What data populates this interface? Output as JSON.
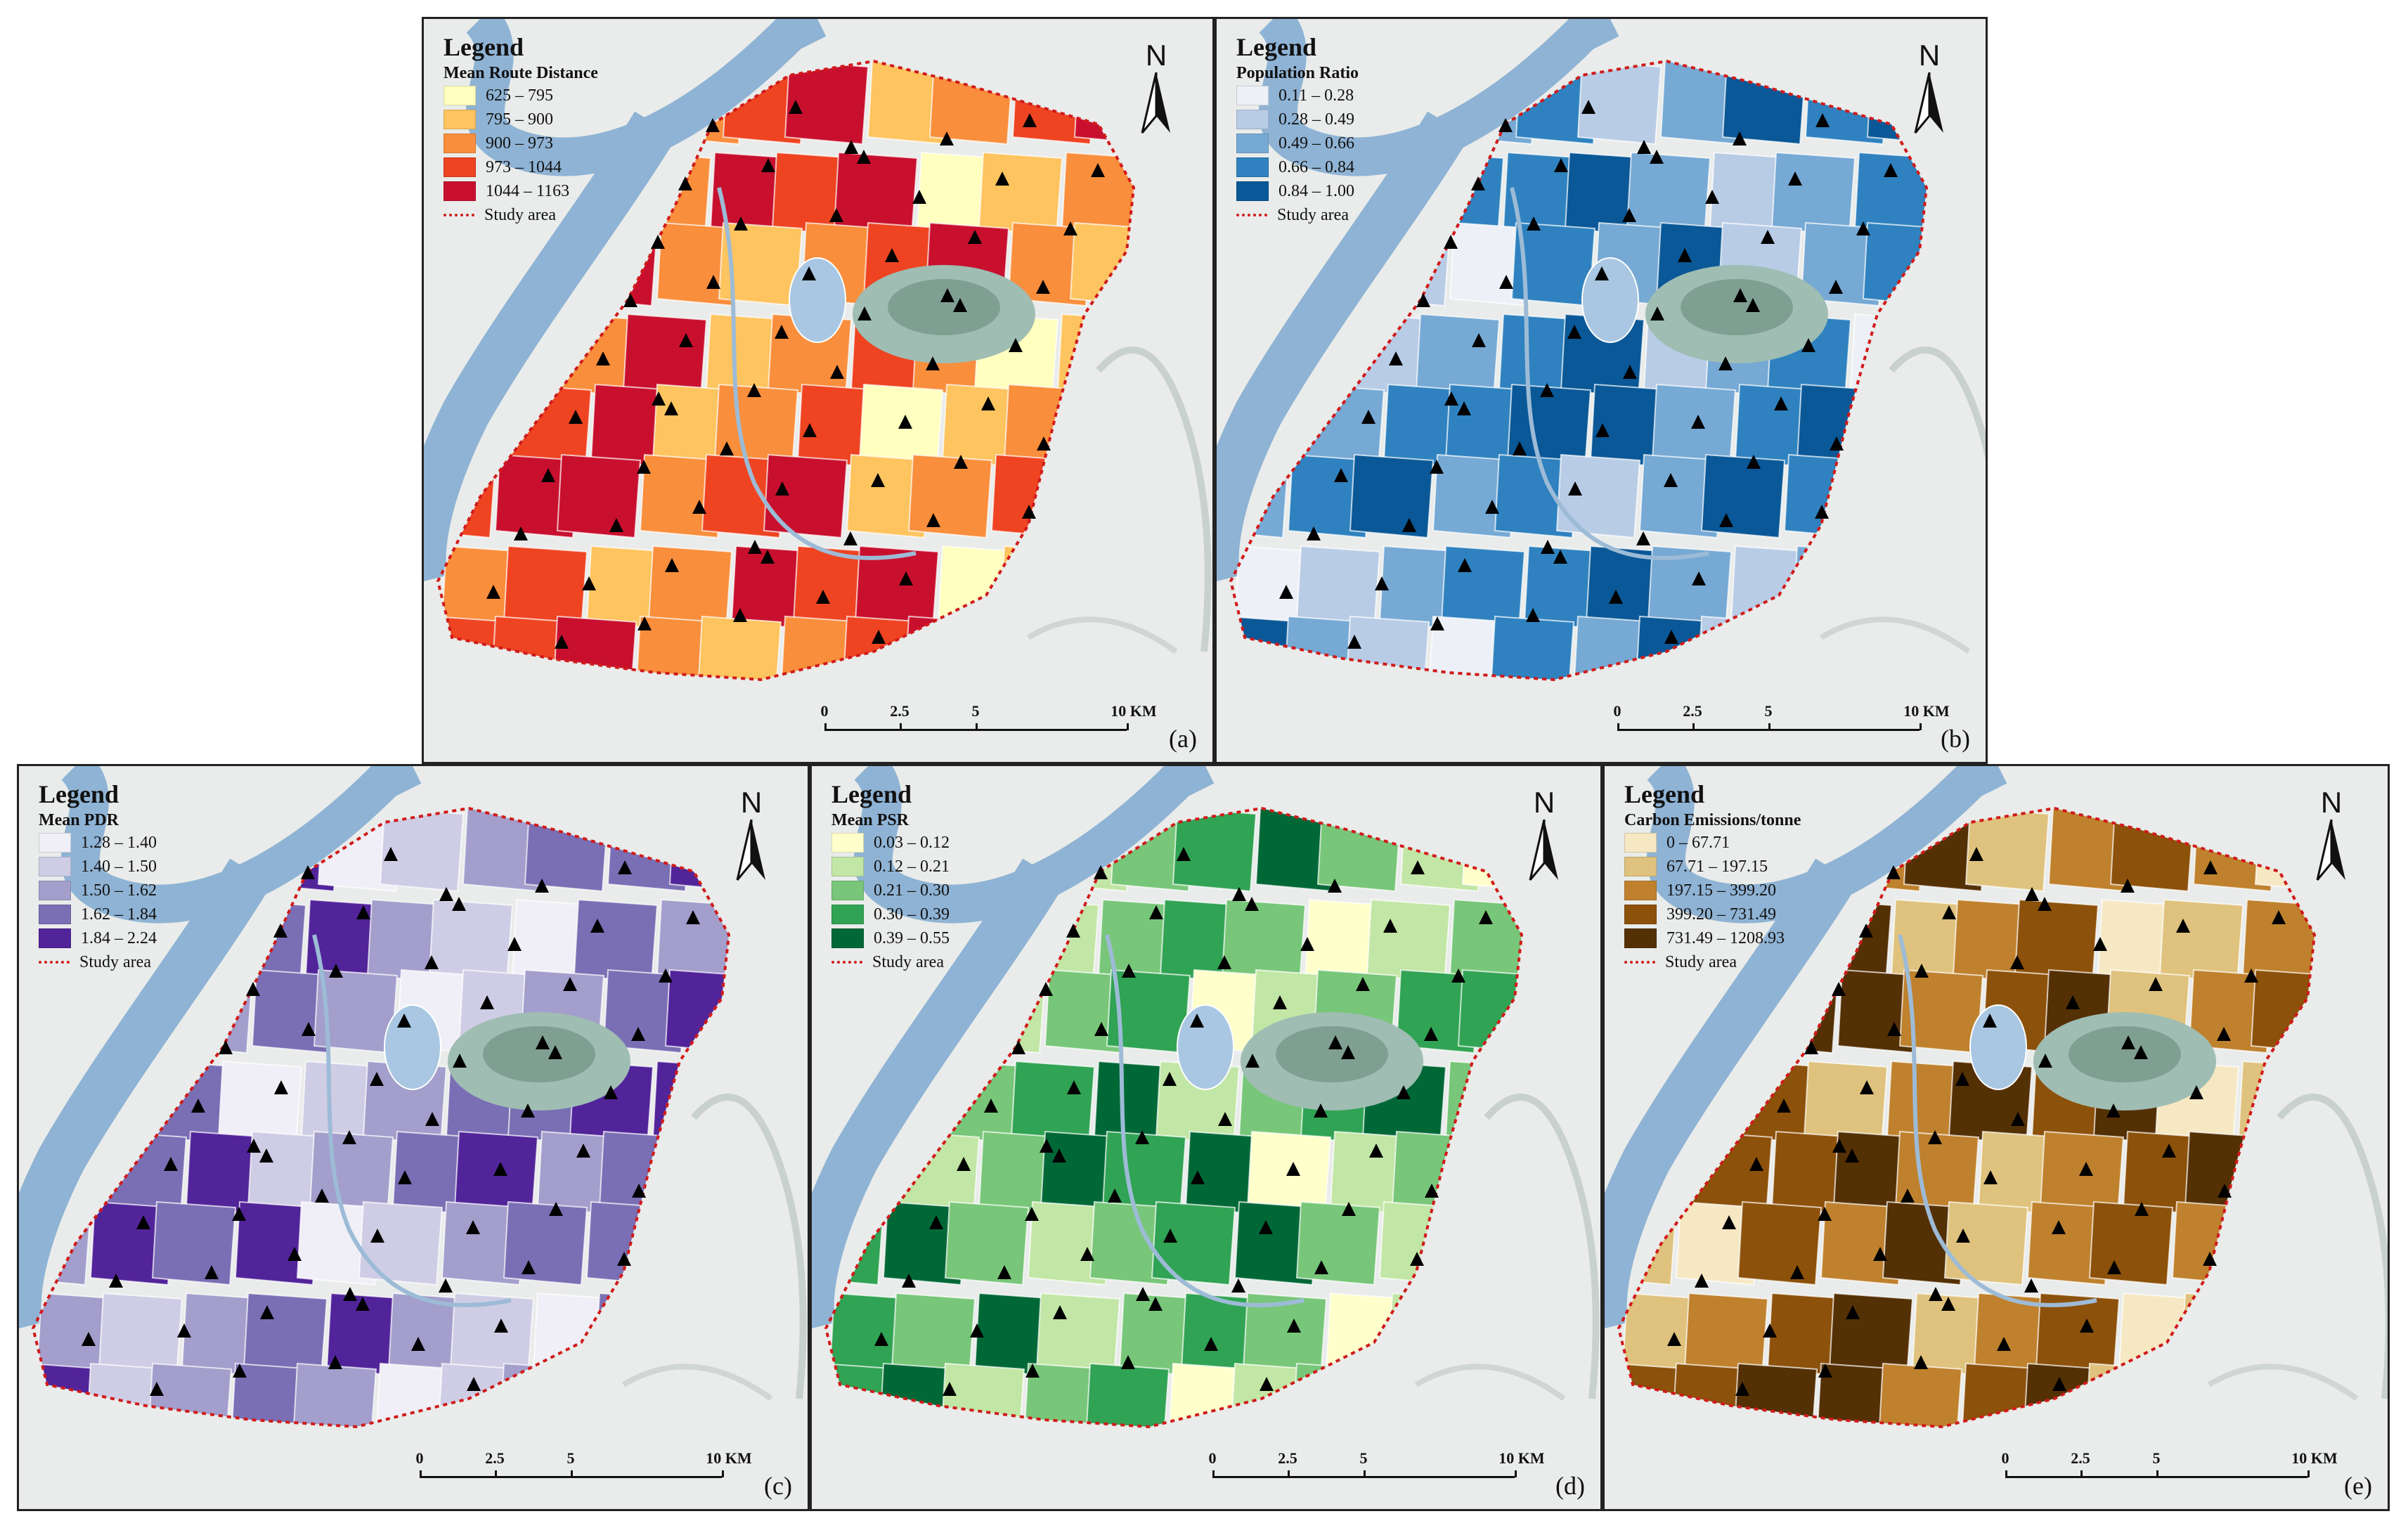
{
  "panels": {
    "a": {
      "tag": "(a)",
      "legend": {
        "title": "Legend",
        "subtitle": "Mean Route Distance",
        "classes": [
          {
            "label": "625 – 795",
            "color": "#ffffbf"
          },
          {
            "label": "795 – 900",
            "color": "#fec45f"
          },
          {
            "label": "900 – 973",
            "color": "#f98e3c"
          },
          {
            "label": "973 – 1044",
            "color": "#ee4422"
          },
          {
            "label": "1044 – 1163",
            "color": "#c8102e"
          }
        ],
        "study_area": "Study area"
      },
      "north": "N",
      "scale": [
        "0",
        "2.5",
        "5",
        "10 KM"
      ]
    },
    "b": {
      "tag": "(b)",
      "legend": {
        "title": "Legend",
        "subtitle": "Population Ratio",
        "classes": [
          {
            "label": "0.11 – 0.28",
            "color": "#eef0f8"
          },
          {
            "label": "0.28 – 0.49",
            "color": "#b9cce6"
          },
          {
            "label": "0.49 – 0.66",
            "color": "#76a9d4"
          },
          {
            "label": "0.66 – 0.84",
            "color": "#2f82bf"
          },
          {
            "label": "0.84 – 1.00",
            "color": "#0a5897"
          }
        ],
        "study_area": "Study area"
      },
      "north": "N",
      "scale": [
        "0",
        "2.5",
        "5",
        "10 KM"
      ]
    },
    "c": {
      "tag": "(c)",
      "legend": {
        "title": "Legend",
        "subtitle": "Mean PDR",
        "classes": [
          {
            "label": "1.28 – 1.40",
            "color": "#f0eff7"
          },
          {
            "label": "1.40 – 1.50",
            "color": "#cfcde5"
          },
          {
            "label": "1.50 – 1.62",
            "color": "#a39ecb"
          },
          {
            "label": "1.62 – 1.84",
            "color": "#7a6fb4"
          },
          {
            "label": "1.84 – 2.24",
            "color": "#52249a"
          }
        ],
        "study_area": "Study area"
      },
      "north": "N",
      "scale": [
        "0",
        "2.5",
        "5",
        "10 KM"
      ]
    },
    "d": {
      "tag": "(d)",
      "legend": {
        "title": "Legend",
        "subtitle": "Mean PSR",
        "classes": [
          {
            "label": "0.03 – 0.12",
            "color": "#ffffcc"
          },
          {
            "label": "0.12 – 0.21",
            "color": "#c2e6a5"
          },
          {
            "label": "0.21 – 0.30",
            "color": "#78c679"
          },
          {
            "label": "0.30 – 0.39",
            "color": "#31a354"
          },
          {
            "label": "0.39 – 0.55",
            "color": "#006837"
          }
        ],
        "study_area": "Study area"
      },
      "north": "N",
      "scale": [
        "0",
        "2.5",
        "5",
        "10 KM"
      ]
    },
    "e": {
      "tag": "(e)",
      "legend": {
        "title": "Legend",
        "subtitle": "Carbon Emissions/tonne",
        "classes": [
          {
            "label": "0 – 67.71",
            "color": "#f6e8c3"
          },
          {
            "label": "67.71 – 197.15",
            "color": "#dfc27d"
          },
          {
            "label": "197.15 – 399.20",
            "color": "#bf812d"
          },
          {
            "label": "399.20 – 731.49",
            "color": "#8c510a"
          },
          {
            "label": "731.49 – 1208.93",
            "color": "#543005"
          }
        ],
        "study_area": "Study area"
      },
      "north": "N",
      "scale": [
        "0",
        "2.5",
        "5",
        "10 KM"
      ]
    }
  },
  "colors": {
    "river": "#8fb3d4",
    "basemap": "#e9ecea",
    "boundary": "#d01a1a",
    "station": "#000000"
  },
  "district_classes": [
    3,
    4,
    4,
    2,
    3,
    4,
    1,
    2,
    3,
    4,
    2,
    3,
    1,
    2,
    4,
    3,
    4,
    0,
    1,
    2,
    3,
    3,
    4,
    2,
    1,
    2,
    3,
    4,
    2,
    1,
    0,
    3,
    2,
    4,
    1,
    2,
    3,
    2,
    0,
    1,
    2,
    3,
    4,
    1,
    2,
    3,
    0,
    1,
    2,
    3
  ]
}
